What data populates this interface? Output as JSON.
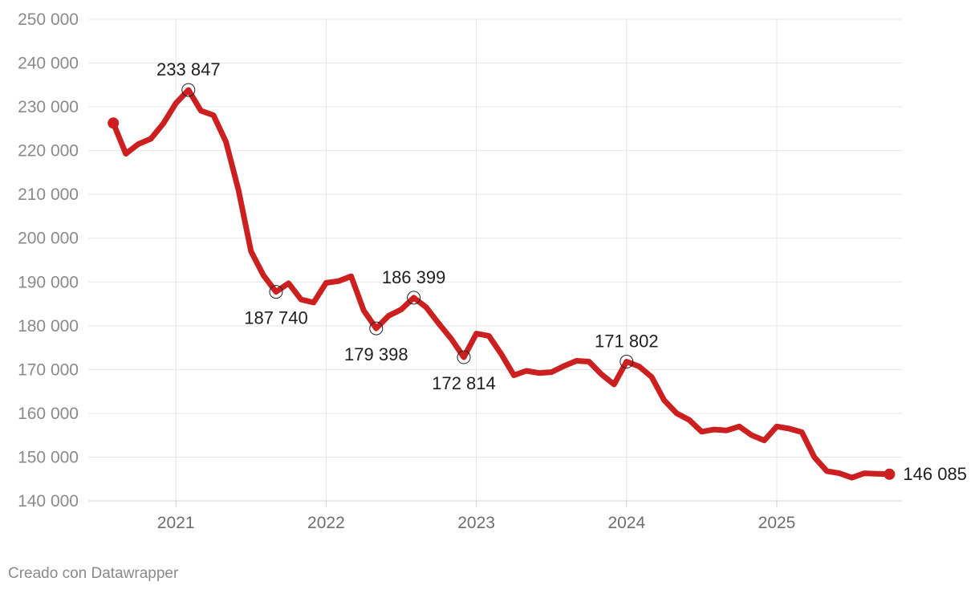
{
  "chart_data": {
    "type": "line",
    "title": "",
    "xlabel": "",
    "ylabel": "",
    "ylim": [
      140000,
      250000
    ],
    "xlim": [
      "2020-06",
      "2025-11"
    ],
    "grid": true,
    "y_ticks": [
      140000,
      150000,
      160000,
      170000,
      180000,
      190000,
      200000,
      210000,
      220000,
      230000,
      240000,
      250000
    ],
    "y_tick_labels": [
      "140 000",
      "150 000",
      "160 000",
      "170 000",
      "180 000",
      "190 000",
      "200 000",
      "210 000",
      "220 000",
      "230 000",
      "240 000",
      "250 000"
    ],
    "x_ticks": [
      "2021-01",
      "2022-01",
      "2023-01",
      "2024-01",
      "2025-01"
    ],
    "x_tick_labels": [
      "2021",
      "2022",
      "2023",
      "2024",
      "2025"
    ],
    "color": "#cc1f1f",
    "series": [
      {
        "x": [
          "2020-08",
          "2020-09",
          "2020-10",
          "2020-11",
          "2020-12",
          "2021-01",
          "2021-02",
          "2021-03",
          "2021-04",
          "2021-05",
          "2021-06",
          "2021-07",
          "2021-08",
          "2021-09",
          "2021-10",
          "2021-11",
          "2021-12",
          "2022-01",
          "2022-02",
          "2022-03",
          "2022-04",
          "2022-05",
          "2022-06",
          "2022-07",
          "2022-08",
          "2022-09",
          "2022-10",
          "2022-11",
          "2022-12",
          "2023-01",
          "2023-02",
          "2023-03",
          "2023-04",
          "2023-05",
          "2023-06",
          "2023-07",
          "2023-08",
          "2023-09",
          "2023-10",
          "2023-11",
          "2023-12",
          "2024-01",
          "2024-02",
          "2024-03",
          "2024-04",
          "2024-05",
          "2024-06",
          "2024-07",
          "2024-08",
          "2024-09",
          "2024-10",
          "2024-11",
          "2024-12",
          "2025-01",
          "2025-02",
          "2025-03",
          "2025-04",
          "2025-05",
          "2025-06",
          "2025-07",
          "2025-08",
          "2025-09",
          "2025-10"
        ],
        "values": [
          226300,
          219300,
          221500,
          222700,
          226200,
          230800,
          233847,
          229100,
          228100,
          222000,
          211000,
          197000,
          191500,
          187740,
          189700,
          186000,
          185300,
          189800,
          190200,
          191300,
          183500,
          179398,
          182300,
          183700,
          186399,
          184200,
          180500,
          177000,
          172814,
          178200,
          177700,
          173500,
          168700,
          169700,
          169200,
          169400,
          170800,
          172000,
          171800,
          168900,
          166600,
          171802,
          170700,
          168300,
          163000,
          160000,
          158500,
          155800,
          156300,
          156100,
          157000,
          155000,
          153800,
          157000,
          156500,
          155700,
          150000,
          146800,
          146300,
          145300,
          146300,
          146200,
          146085
        ]
      }
    ],
    "annotations": [
      {
        "x": "2021-02",
        "value": 233847,
        "label": "233 847",
        "pos": "above"
      },
      {
        "x": "2021-09",
        "value": 187740,
        "label": "187 740",
        "pos": "below"
      },
      {
        "x": "2022-05",
        "value": 179398,
        "label": "179 398",
        "pos": "below"
      },
      {
        "x": "2022-08",
        "value": 186399,
        "label": "186 399",
        "pos": "above"
      },
      {
        "x": "2022-12",
        "value": 172814,
        "label": "172 814",
        "pos": "below"
      },
      {
        "x": "2024-01",
        "value": 171802,
        "label": "171 802",
        "pos": "above"
      },
      {
        "x": "2025-10",
        "value": 146085,
        "label": "146 085",
        "pos": "right"
      }
    ]
  },
  "footer": "Creado con Datawrapper"
}
